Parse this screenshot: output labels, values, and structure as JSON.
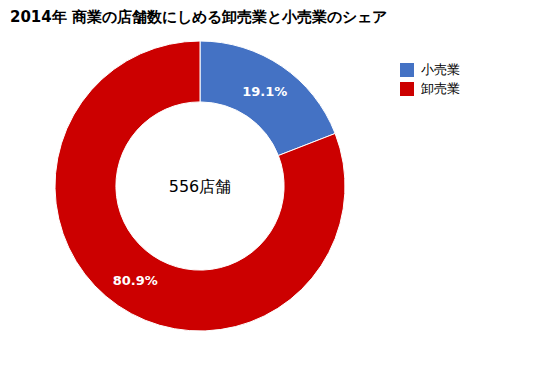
{
  "chart_data": {
    "type": "pie",
    "title": "2014年 商業の店舗数にしめる卸売業と小売業のシェア",
    "categories": [
      "小売業",
      "卸売業"
    ],
    "values": [
      19.1,
      80.9
    ],
    "value_labels": [
      "19.1%",
      "80.9%"
    ],
    "colors": [
      "#4472C4",
      "#CC0000"
    ],
    "annotations": [
      "556店舗"
    ],
    "data_labels": true,
    "legend": "right"
  }
}
